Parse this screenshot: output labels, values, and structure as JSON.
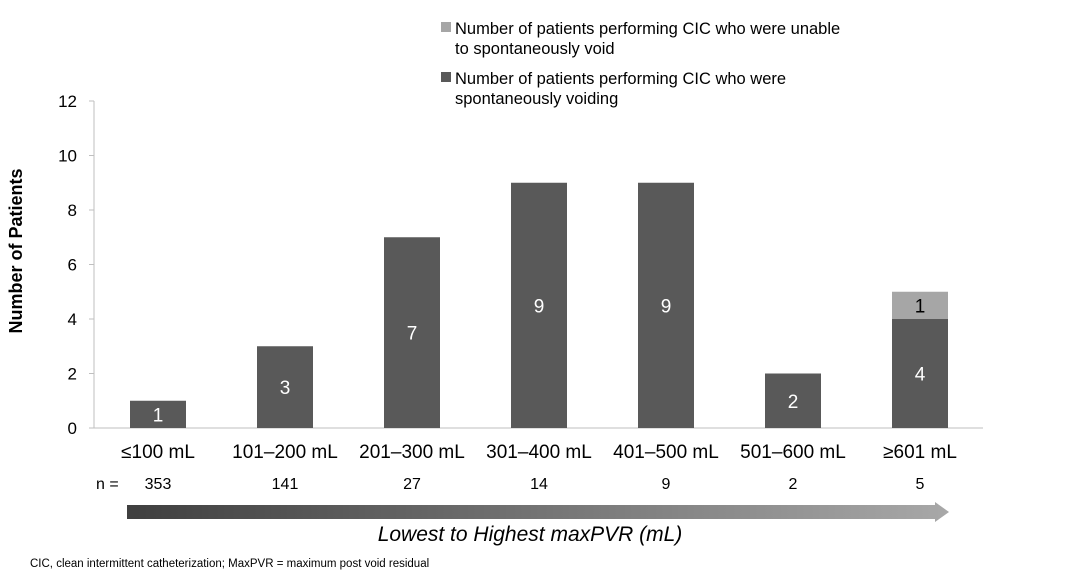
{
  "chart_data": {
    "type": "bar",
    "stacked": true,
    "categories": [
      "≤100 mL",
      "101–200 mL",
      "201–300 mL",
      "301–400 mL",
      "401–500 mL",
      "501–600 mL",
      "≥601 mL"
    ],
    "series": [
      {
        "name": "Number of patients performing CIC who were spontaneously voiding",
        "color": "#595959",
        "values": [
          1,
          3,
          7,
          9,
          9,
          2,
          4
        ]
      },
      {
        "name": "Number of patients performing CIC who were unable to spontaneously void",
        "color": "#a6a6a6",
        "values": [
          0,
          0,
          0,
          0,
          0,
          0,
          1
        ]
      }
    ],
    "ylabel": "Number of Patients",
    "ylim": [
      0,
      12
    ],
    "yticks": [
      0,
      2,
      4,
      6,
      8,
      10,
      12
    ],
    "grid": false,
    "legend_position": "top-right",
    "legend": [
      {
        "line1": "Number of patients performing CIC who were unable",
        "line2": "to spontaneously void",
        "color": "#a6a6a6"
      },
      {
        "line1": "Number of patients performing CIC who were",
        "line2": "spontaneously voiding",
        "color": "#595959"
      }
    ],
    "n_prefix": "n =",
    "n_values": [
      "353",
      "141",
      "27",
      "14",
      "9",
      "2",
      "5"
    ],
    "arrow_label": "Lowest to Highest maxPVR (mL)"
  },
  "footnote": "CIC, clean intermittent catheterization; MaxPVR = maximum post void residual"
}
